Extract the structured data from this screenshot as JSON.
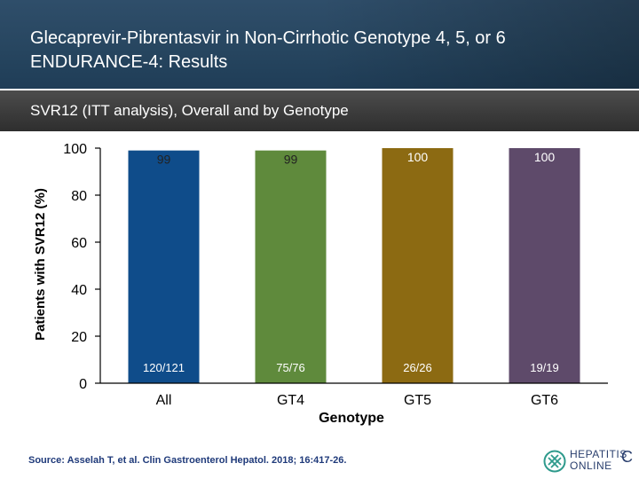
{
  "header": {
    "title_line1": "Glecaprevir-Pibrentasvir in Non-Cirrhotic Genotype 4, 5, or 6",
    "title_line2": "ENDURANCE-4: Results",
    "subtitle": "SVR12 (ITT analysis), Overall and by Genotype"
  },
  "colors": {
    "all": "#0f4c8a",
    "gt4": "#5f8a3c",
    "gt5": "#8c6a12",
    "gt6": "#5e4a6a"
  },
  "chart_data": {
    "type": "bar",
    "categories": [
      "All",
      "GT4",
      "GT5",
      "GT6"
    ],
    "values": [
      99,
      99,
      100,
      100
    ],
    "value_labels": [
      "99",
      "99",
      "100",
      "100"
    ],
    "counts": [
      "120/121",
      "75/76",
      "26/26",
      "19/19"
    ],
    "xlabel": "Genotype",
    "ylabel": "Patients with SVR12 (%)",
    "ylim": [
      0,
      100
    ],
    "yticks": [
      0,
      20,
      40,
      60,
      80,
      100
    ],
    "grid": false
  },
  "footer": {
    "source": "Source: Asselah T, et al.  Clin Gastroenterol Hepatol. 2018; 16:417-26.",
    "logo_line1": "HEPATITIS",
    "logo_line2": "ONLINE",
    "logo_c": "C"
  }
}
